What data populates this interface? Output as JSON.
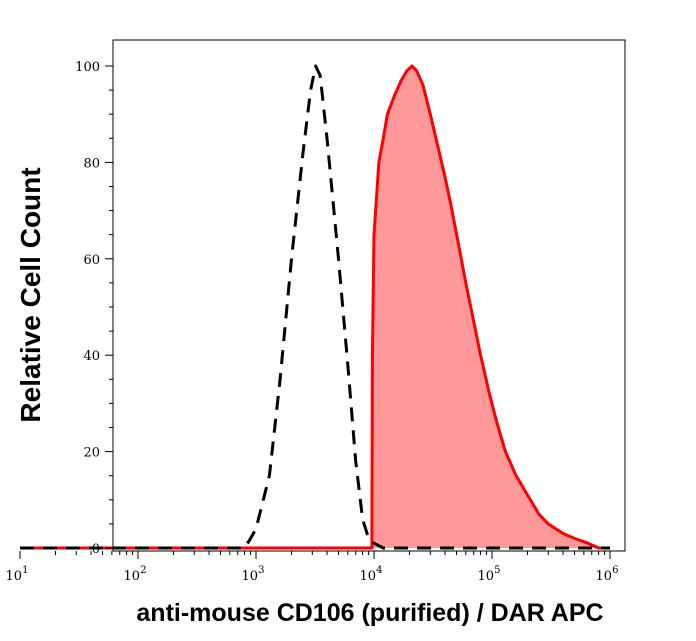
{
  "chart_data": {
    "type": "area",
    "title": "",
    "xlabel": "anti-mouse CD106 (purified) / DAR APC",
    "ylabel": "Relative Cell Count",
    "xscale": "log",
    "xlim": [
      10,
      1000000
    ],
    "ylim": [
      0,
      100
    ],
    "x_ticks": [
      {
        "base": "10",
        "exp": "1",
        "value": 10
      },
      {
        "base": "10",
        "exp": "2",
        "value": 100
      },
      {
        "base": "10",
        "exp": "3",
        "value": 1000
      },
      {
        "base": "10",
        "exp": "4",
        "value": 10000
      },
      {
        "base": "10",
        "exp": "5",
        "value": 100000
      },
      {
        "base": "10",
        "exp": "6",
        "value": 1000000
      }
    ],
    "y_ticks": [
      "0",
      "20",
      "40",
      "60",
      "80",
      "100"
    ],
    "grid": false,
    "series": [
      {
        "style": "dashed",
        "color": "#000000",
        "fill": false,
        "points": [
          [
            10,
            0
          ],
          [
            800,
            0
          ],
          [
            900,
            2
          ],
          [
            1000,
            4
          ],
          [
            1300,
            15
          ],
          [
            1600,
            35
          ],
          [
            2000,
            60
          ],
          [
            2500,
            82
          ],
          [
            2900,
            95
          ],
          [
            3200,
            100
          ],
          [
            3500,
            98
          ],
          [
            4000,
            85
          ],
          [
            5000,
            60
          ],
          [
            6000,
            38
          ],
          [
            7000,
            18
          ],
          [
            8000,
            6
          ],
          [
            9000,
            2
          ],
          [
            10000,
            1
          ],
          [
            12000,
            0
          ],
          [
            1000000,
            0
          ]
        ]
      },
      {
        "style": "solid",
        "color": "#ff0000",
        "fill": true,
        "fill_color": "#ff9999",
        "points": [
          [
            10,
            0
          ],
          [
            9600,
            0
          ],
          [
            9700,
            40
          ],
          [
            10000,
            65
          ],
          [
            11000,
            80
          ],
          [
            12000,
            85
          ],
          [
            13000,
            90
          ],
          [
            15000,
            94
          ],
          [
            17000,
            97
          ],
          [
            19000,
            99
          ],
          [
            21000,
            100
          ],
          [
            23000,
            99
          ],
          [
            26000,
            96
          ],
          [
            30000,
            90
          ],
          [
            35000,
            83
          ],
          [
            40000,
            77
          ],
          [
            45000,
            71
          ],
          [
            52000,
            63
          ],
          [
            60000,
            55
          ],
          [
            70000,
            47
          ],
          [
            80000,
            40
          ],
          [
            95000,
            32
          ],
          [
            110000,
            26
          ],
          [
            130000,
            20
          ],
          [
            160000,
            15
          ],
          [
            200000,
            11
          ],
          [
            250000,
            7
          ],
          [
            300000,
            5
          ],
          [
            400000,
            3
          ],
          [
            500000,
            2
          ],
          [
            650000,
            1
          ],
          [
            800000,
            0
          ],
          [
            1000000,
            0
          ]
        ]
      }
    ]
  }
}
